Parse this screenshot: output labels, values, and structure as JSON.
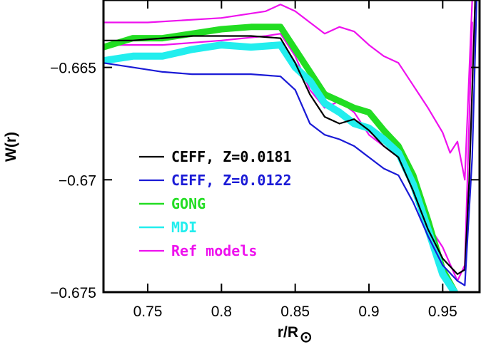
{
  "chart_data": {
    "type": "line",
    "title": "",
    "xlabel": "r/R",
    "xlabel_subscript": "⊙",
    "ylabel": "W(r)",
    "xlim": [
      0.72,
      0.975
    ],
    "ylim": [
      -0.675,
      -0.662
    ],
    "xticks": [
      0.75,
      0.8,
      0.85,
      0.9,
      0.95
    ],
    "xtick_labels": [
      "0.75",
      "0.8",
      "0.85",
      "0.9",
      "0.95"
    ],
    "yticks": [
      -0.665,
      -0.67,
      -0.675
    ],
    "ytick_labels": [
      "−0.665",
      "−0.67",
      "−0.675"
    ],
    "legend_position": "center-left",
    "series": [
      {
        "name": "Ref models",
        "color": "#ee11ee",
        "width": 2.2,
        "x": [
          0.72,
          0.75,
          0.8,
          0.83,
          0.84,
          0.85,
          0.86,
          0.87,
          0.88,
          0.89,
          0.9,
          0.91,
          0.92,
          0.93,
          0.94,
          0.95,
          0.955,
          0.96,
          0.965,
          0.97
        ],
        "y": [
          -0.663,
          -0.663,
          -0.6628,
          -0.6625,
          -0.6622,
          -0.6625,
          -0.663,
          -0.6635,
          -0.6632,
          -0.6634,
          -0.664,
          -0.6645,
          -0.6648,
          -0.6658,
          -0.6668,
          -0.6679,
          -0.6688,
          -0.6683,
          -0.67,
          -0.662
        ]
      },
      {
        "name": "Ref models",
        "color": "#ee11ee",
        "width": 2.2,
        "x": [
          0.72,
          0.76,
          0.8,
          0.83,
          0.84,
          0.85,
          0.86,
          0.87,
          0.88,
          0.89,
          0.9,
          0.91,
          0.92,
          0.93,
          0.94,
          0.95,
          0.96,
          0.965,
          0.97
        ],
        "y": [
          -0.664,
          -0.664,
          -0.6638,
          -0.6636,
          -0.6635,
          -0.6645,
          -0.666,
          -0.6668,
          -0.6665,
          -0.667,
          -0.668,
          -0.6685,
          -0.669,
          -0.6705,
          -0.672,
          -0.673,
          -0.6745,
          -0.6738,
          -0.663
        ]
      },
      {
        "name": "GONG",
        "color": "#22dd22",
        "width": 9,
        "x": [
          0.72,
          0.74,
          0.76,
          0.78,
          0.8,
          0.82,
          0.84,
          0.85,
          0.86,
          0.87,
          0.88,
          0.89,
          0.9,
          0.91,
          0.92,
          0.93,
          0.94,
          0.95,
          0.96
        ],
        "y": [
          -0.6641,
          -0.6637,
          -0.6637,
          -0.6635,
          -0.6633,
          -0.6632,
          -0.6632,
          -0.6642,
          -0.6652,
          -0.6662,
          -0.6665,
          -0.6668,
          -0.667,
          -0.6678,
          -0.6685,
          -0.6698,
          -0.6718,
          -0.674,
          -0.6752
        ]
      },
      {
        "name": "MDI",
        "color": "#22eeee",
        "width": 10,
        "x": [
          0.72,
          0.74,
          0.76,
          0.78,
          0.8,
          0.82,
          0.84,
          0.85,
          0.86,
          0.87,
          0.88,
          0.89,
          0.9,
          0.91,
          0.92,
          0.93,
          0.94,
          0.95,
          0.96
        ],
        "y": [
          -0.6647,
          -0.6645,
          -0.6645,
          -0.6642,
          -0.664,
          -0.6641,
          -0.664,
          -0.665,
          -0.6656,
          -0.6666,
          -0.667,
          -0.6675,
          -0.6677,
          -0.6682,
          -0.6688,
          -0.6702,
          -0.6722,
          -0.6742,
          -0.6752
        ]
      },
      {
        "name": "CEFF, Z=0.0181",
        "color": "#000000",
        "width": 2.2,
        "x": [
          0.72,
          0.74,
          0.76,
          0.78,
          0.8,
          0.82,
          0.84,
          0.85,
          0.86,
          0.87,
          0.88,
          0.89,
          0.9,
          0.91,
          0.92,
          0.93,
          0.94,
          0.95,
          0.96,
          0.965,
          0.968,
          0.972
        ],
        "y": [
          -0.6638,
          -0.6638,
          -0.6637,
          -0.6636,
          -0.6636,
          -0.6636,
          -0.6637,
          -0.6648,
          -0.6662,
          -0.6672,
          -0.6675,
          -0.6673,
          -0.6678,
          -0.6685,
          -0.669,
          -0.6705,
          -0.6722,
          -0.6735,
          -0.6742,
          -0.674,
          -0.67,
          -0.662
        ]
      },
      {
        "name": "CEFF, Z=0.0122",
        "color": "#1a1ad6",
        "width": 2.2,
        "x": [
          0.72,
          0.74,
          0.76,
          0.78,
          0.8,
          0.82,
          0.84,
          0.85,
          0.86,
          0.87,
          0.88,
          0.89,
          0.9,
          0.91,
          0.92,
          0.93,
          0.94,
          0.95,
          0.96,
          0.965,
          0.97,
          0.973
        ],
        "y": [
          -0.6648,
          -0.665,
          -0.6652,
          -0.6653,
          -0.6653,
          -0.6653,
          -0.6654,
          -0.666,
          -0.6675,
          -0.668,
          -0.6682,
          -0.6685,
          -0.669,
          -0.6695,
          -0.6698,
          -0.671,
          -0.6725,
          -0.6738,
          -0.6745,
          -0.6747,
          -0.669,
          -0.662
        ]
      }
    ],
    "legend": [
      {
        "label": "CEFF, Z=0.0181",
        "color": "#000000",
        "text_color": "#000000",
        "width": 2.2
      },
      {
        "label": "CEFF, Z=0.0122",
        "color": "#1a1ad6",
        "text_color": "#1a1ad6",
        "width": 2.2
      },
      {
        "label": "GONG",
        "color": "#22dd22",
        "text_color": "#22dd22",
        "width": 2.5
      },
      {
        "label": "MDI",
        "color": "#22eeee",
        "text_color": "#22eeee",
        "width": 2.5
      },
      {
        "label": "Ref models",
        "color": "#ee11ee",
        "text_color": "#ee11ee",
        "width": 2.2
      }
    ]
  }
}
